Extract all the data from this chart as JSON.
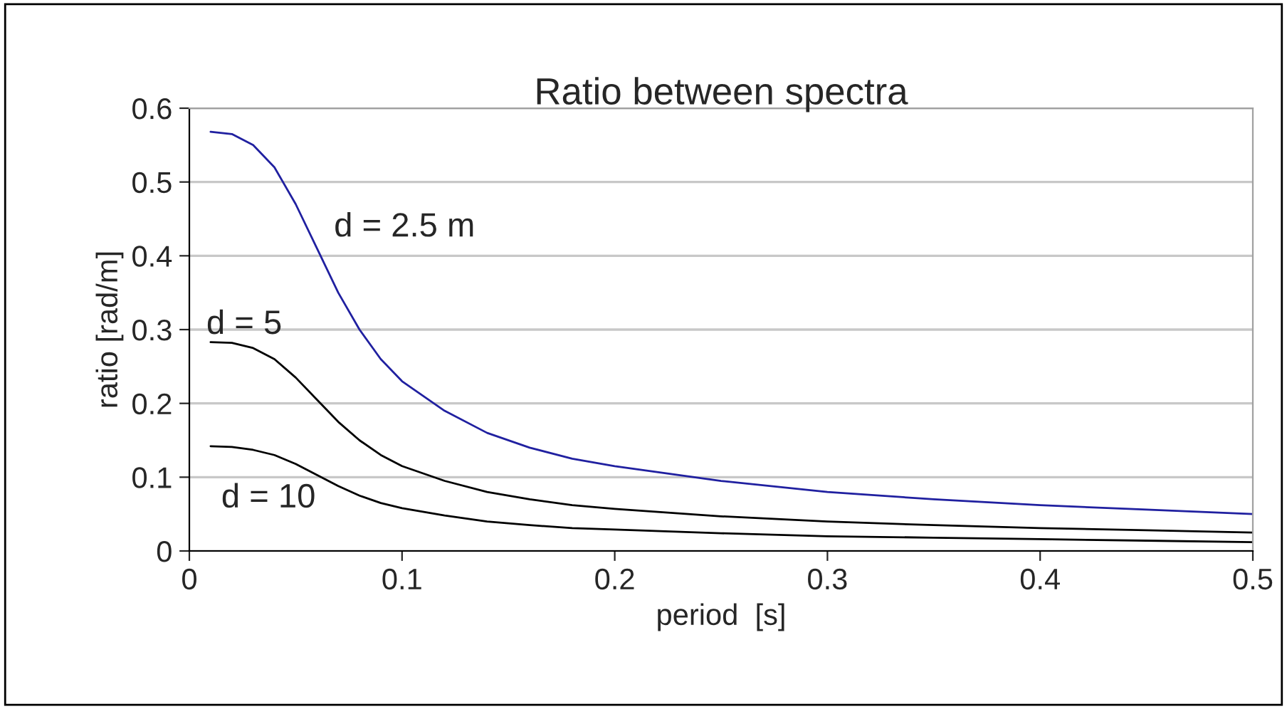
{
  "chart_data": {
    "type": "line",
    "title": "Ratio between spectra",
    "xlabel": "period  [s]",
    "ylabel": "ratio [rad/m]",
    "x": [
      0.01,
      0.02,
      0.03,
      0.04,
      0.05,
      0.06,
      0.07,
      0.08,
      0.09,
      0.1,
      0.12,
      0.14,
      0.16,
      0.18,
      0.2,
      0.25,
      0.3,
      0.35,
      0.4,
      0.45,
      0.5
    ],
    "series": [
      {
        "color": "#2020a0",
        "values": [
          0.568,
          0.565,
          0.55,
          0.52,
          0.47,
          0.41,
          0.35,
          0.3,
          0.26,
          0.23,
          0.19,
          0.16,
          0.14,
          0.125,
          0.115,
          0.095,
          0.08,
          0.07,
          0.062,
          0.056,
          0.05
        ]
      },
      {
        "color": "#000000",
        "values": [
          0.283,
          0.282,
          0.275,
          0.26,
          0.235,
          0.205,
          0.175,
          0.15,
          0.13,
          0.115,
          0.095,
          0.08,
          0.07,
          0.062,
          0.057,
          0.047,
          0.04,
          0.035,
          0.031,
          0.028,
          0.025
        ]
      },
      {
        "color": "#000000",
        "values": [
          0.142,
          0.141,
          0.137,
          0.13,
          0.118,
          0.103,
          0.088,
          0.075,
          0.065,
          0.058,
          0.048,
          0.04,
          0.035,
          0.031,
          0.029,
          0.024,
          0.02,
          0.018,
          0.016,
          0.014,
          0.012
        ]
      }
    ],
    "annotations": [
      "d = 2.5 m",
      "d = 5",
      "d = 10"
    ],
    "xlim": [
      0,
      0.5
    ],
    "xticks": [
      0,
      0.1,
      0.2,
      0.3,
      0.4,
      0.5
    ],
    "ylim": [
      0,
      0.6
    ],
    "yticks": [
      0,
      0.1,
      0.2,
      0.3,
      0.4,
      0.5,
      0.6
    ],
    "grid": "y",
    "legend": false,
    "marker": "none",
    "line_style": "solid"
  }
}
